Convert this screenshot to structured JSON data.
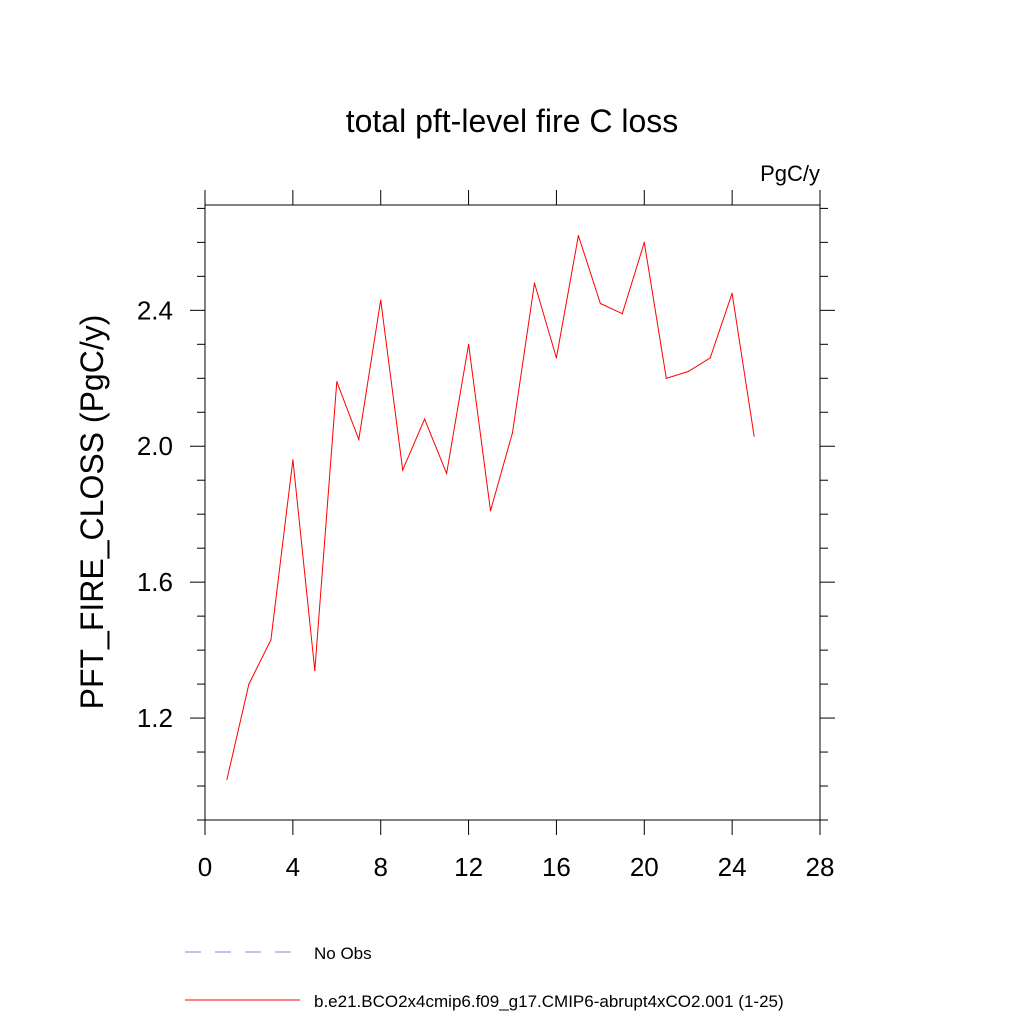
{
  "chart_data": {
    "type": "line",
    "title": "total pft-level fire C loss",
    "units_label": "PgC/y",
    "xlabel": "",
    "ylabel": "PFT_FIRE_CLOSS  (PgC/y)",
    "xlim": [
      0,
      28
    ],
    "ylim": [
      0.9,
      2.71
    ],
    "x_major_ticks": [
      0,
      4,
      8,
      12,
      16,
      20,
      24,
      28
    ],
    "x_tick_labels": [
      "0",
      "4",
      "8",
      "12",
      "16",
      "20",
      "24",
      "28"
    ],
    "x_minor_step": 4,
    "y_major_ticks": [
      1.2,
      1.6,
      2.0,
      2.4
    ],
    "y_tick_labels": [
      "1.2",
      "1.6",
      "2.0",
      "2.4"
    ],
    "y_minor_step": 0.1,
    "grid": false,
    "legend_position": "bottom",
    "series": [
      {
        "name": "b.e21.BCO2x4cmip6.f09_g17.CMIP6-abrupt4xCO2.001 (1-25)",
        "color": "#ff0000",
        "style": "solid",
        "x": [
          1,
          2,
          3,
          4,
          5,
          6,
          7,
          8,
          9,
          10,
          11,
          12,
          13,
          14,
          15,
          16,
          17,
          18,
          19,
          20,
          21,
          22,
          23,
          24,
          25
        ],
        "values": [
          1.02,
          1.3,
          1.43,
          1.96,
          1.34,
          2.19,
          2.02,
          2.43,
          1.93,
          2.08,
          1.92,
          2.3,
          1.81,
          2.04,
          2.48,
          2.26,
          2.62,
          2.42,
          2.39,
          2.6,
          2.2,
          2.22,
          2.26,
          2.45,
          2.03
        ]
      }
    ],
    "legend": [
      {
        "label": "No Obs",
        "color": "#8a8ad6",
        "style": "dashed"
      },
      {
        "label": "b.e21.BCO2x4cmip6.f09_g17.CMIP6-abrupt4xCO2.001 (1-25)",
        "color": "#ff0000",
        "style": "solid"
      }
    ]
  }
}
